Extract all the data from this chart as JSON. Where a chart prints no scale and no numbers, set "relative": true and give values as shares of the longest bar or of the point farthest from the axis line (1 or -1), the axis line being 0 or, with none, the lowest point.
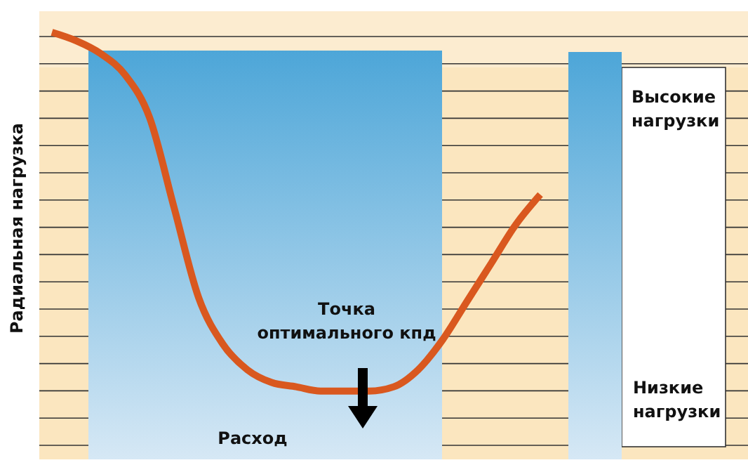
{
  "chart_data": {
    "type": "line",
    "relative": true,
    "xlabel": "Расход",
    "ylabel": "Радиальная нагрузка",
    "grid": true,
    "categories": [
      null,
      null,
      null,
      null,
      null,
      null,
      null,
      null,
      null,
      null,
      null,
      null,
      null,
      null,
      null,
      null,
      null,
      null,
      null,
      null,
      null
    ],
    "series": [
      {
        "color": "#d9581f",
        "values": [
          1,
          0.98,
          0.95,
          0.9,
          0.8,
          0.59,
          0.38,
          0.27,
          0.21,
          0.18,
          0.17,
          0.16,
          0.16,
          0.16,
          0.17,
          0.21,
          0.28,
          0.37,
          0.46,
          0.55,
          0.62
        ]
      }
    ],
    "annotations": [
      "Точка\nоптимального кпд",
      "Высокие\nнагрузки",
      "Низкие\nнагрузки"
    ]
  }
}
